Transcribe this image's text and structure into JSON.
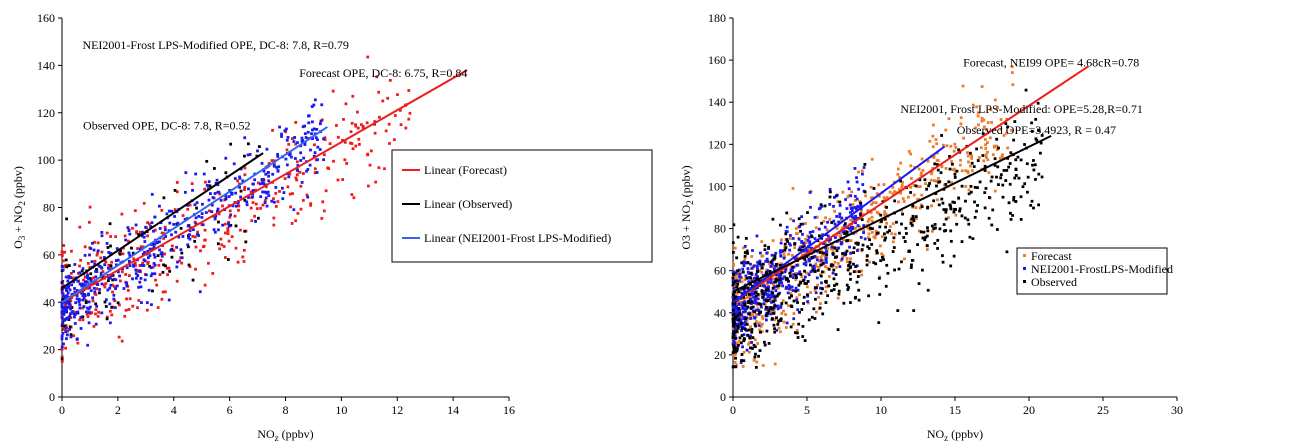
{
  "charts": [
    {
      "chart_data": {
        "type": "scatter",
        "xlim": [
          0,
          16
        ],
        "ylim": [
          0,
          160
        ],
        "xticks": [
          "0",
          "2",
          "4",
          "6",
          "8",
          "10",
          "12",
          "14",
          "16"
        ],
        "yticks": [
          "0",
          "20",
          "40",
          "60",
          "80",
          "100",
          "120",
          "140",
          "160"
        ],
        "xlabel": "NO",
        "xlabel_sub": "z",
        "xlabel_tail": " (ppbv)",
        "ylabel_parts": [
          "O",
          "3",
          " + NO",
          "2",
          " (ppbv)"
        ],
        "grid": false,
        "legend_position": "right",
        "series": [
          {
            "name": "Forecast",
            "color": "#ee1c1c",
            "marker": "square",
            "slope": 6.75,
            "x_range": [
              0,
              12.5
            ],
            "y_noise": 11
          },
          {
            "name": "Observed",
            "color": "#000000",
            "marker": "square",
            "slope": 7.8,
            "x_range": [
              0,
              7.2
            ],
            "y_noise": 12
          },
          {
            "name": "NEI2001-Frost LPS-Modified",
            "color": "#1a1aee",
            "marker": "square",
            "slope": 7.8,
            "x_range": [
              0,
              9.5
            ],
            "y_noise": 8
          }
        ],
        "trendlines": [
          {
            "name": "Linear (Forecast)",
            "color": "#ee1c1c",
            "x": [
              0,
              14.5
            ],
            "y": [
              40,
              138
            ]
          },
          {
            "name": "Linear (Observed)",
            "color": "#000000",
            "x": [
              0,
              7.2
            ],
            "y": [
              46,
              103
            ]
          },
          {
            "name": "Linear (NEI2001-Frost LPS-Modified)",
            "color": "#3366ee",
            "x": [
              0,
              9.5
            ],
            "y": [
              40,
              114
            ]
          }
        ],
        "annotations": [
          {
            "text": "NEI2001-Frost LPS-Modified OPE,  DC-8: 7.8, R=0.79",
            "x": 5.5,
            "y": 147
          },
          {
            "text": "Forecast OPE, DC-8: 6.75, R=0.84",
            "x": 11.5,
            "y": 135
          },
          {
            "text": "Observed OPE, DC-8: 7.8, R=0.52",
            "x": 3.75,
            "y": 113
          }
        ],
        "legend": [
          "Linear (Forecast)",
          "Linear (Observed)",
          "Linear (NEI2001-Frost LPS-Modified)"
        ]
      }
    },
    {
      "chart_data": {
        "type": "scatter",
        "xlim": [
          0,
          30
        ],
        "ylim": [
          0,
          180
        ],
        "xticks": [
          "0",
          "5",
          "10",
          "15",
          "20",
          "25",
          "30"
        ],
        "yticks": [
          "0",
          "20",
          "40",
          "60",
          "80",
          "100",
          "120",
          "140",
          "160",
          "180"
        ],
        "xlabel": "NO",
        "xlabel_sub": "z",
        "xlabel_tail": " (ppbv)",
        "ylabel_parts": [
          "O3 + NO",
          "2",
          " (ppbv)"
        ],
        "grid": false,
        "legend_position": "right",
        "series": [
          {
            "name": "Forecast",
            "color": "#f07a2a",
            "marker": "square",
            "slope": 4.68,
            "x_range": [
              0,
              19
            ],
            "y_noise": 12
          },
          {
            "name": "NEI2001-FrostLPS-Modified",
            "color": "#1a1aee",
            "marker": "square",
            "slope": 5.28,
            "x_range": [
              0,
              9
            ],
            "y_noise": 10
          },
          {
            "name": "Observed",
            "color": "#000000",
            "marker": "square",
            "slope": 3.4923,
            "x_range": [
              0,
              21
            ],
            "y_noise": 14
          }
        ],
        "trendlines": [
          {
            "color": "#ee1c1c",
            "x": [
              0,
              24
            ],
            "y": [
              45,
              157
            ]
          },
          {
            "color": "#1a1aee",
            "x": [
              0,
              14.3
            ],
            "y": [
              45,
              119
            ]
          },
          {
            "color": "#000000",
            "x": [
              0,
              21.5
            ],
            "y": [
              50,
              124
            ]
          }
        ],
        "annotations": [
          {
            "text": "Forecast, NEI99 OPE= 4.68cR=0.78",
            "x": 21.5,
            "y": 157
          },
          {
            "text": "NEI2001, Frost LPS-Modified: OPE=5.28,R=0.71",
            "x": 19.5,
            "y": 135
          },
          {
            "text": "Observed OPE=3.4923, R = 0.47",
            "x": 20.5,
            "y": 125
          }
        ],
        "legend": [
          "Forecast",
          "NEI2001-FrostLPS-Modified",
          "Observed"
        ]
      }
    }
  ]
}
